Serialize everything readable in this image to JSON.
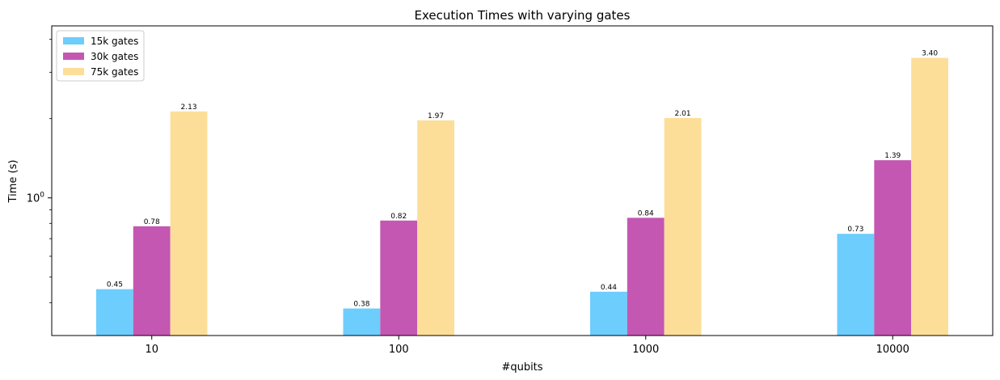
{
  "chart_data": {
    "type": "bar",
    "title": "Execution Times with varying gates",
    "xlabel": "#qubits",
    "ylabel": "Time (s)",
    "yscale": "log",
    "ylim": [
      0.3,
      4.5
    ],
    "ytick_labels": [
      {
        "value": 1,
        "base": "10",
        "exp": "0"
      }
    ],
    "minor_ticks": [
      0.4,
      0.5,
      0.6,
      0.7,
      0.8,
      0.9,
      2,
      3,
      4
    ],
    "categories": [
      "10",
      "100",
      "1000",
      "10000"
    ],
    "series": [
      {
        "name": "15k gates",
        "color": "#6dcdfc",
        "values": [
          0.45,
          0.38,
          0.44,
          0.73
        ],
        "labels": [
          "0.45",
          "0.38",
          "0.44",
          "0.73"
        ]
      },
      {
        "name": "30k gates",
        "color": "#c457b2",
        "values": [
          0.78,
          0.82,
          0.84,
          1.39
        ],
        "labels": [
          "0.78",
          "0.82",
          "0.84",
          "1.39"
        ]
      },
      {
        "name": "75k gates",
        "color": "#fdde99",
        "values": [
          2.13,
          1.97,
          2.01,
          3.4
        ],
        "labels": [
          "2.13",
          "1.97",
          "2.01",
          "3.40"
        ]
      }
    ],
    "legend": "top-left",
    "grid": false
  }
}
